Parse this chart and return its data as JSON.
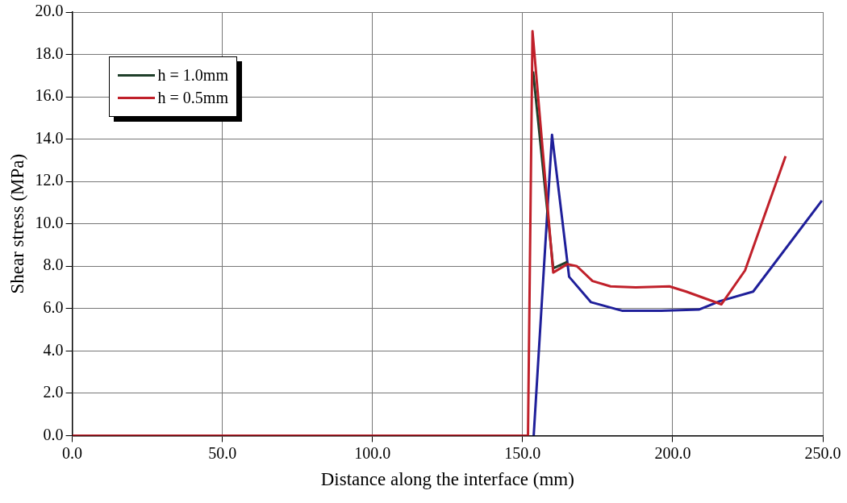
{
  "chart_data": {
    "type": "line",
    "xlabel": "Distance along the interface (mm)",
    "ylabel": "Shear stress (MPa)",
    "xlim": [
      0,
      250
    ],
    "ylim": [
      0,
      20
    ],
    "xticks": [
      {
        "value": 0,
        "label": "0.0"
      },
      {
        "value": 50,
        "label": "50.0"
      },
      {
        "value": 100,
        "label": "100.0"
      },
      {
        "value": 150,
        "label": "150.0"
      },
      {
        "value": 200,
        "label": "200.0"
      },
      {
        "value": 250,
        "label": "250.0"
      }
    ],
    "yticks": [
      {
        "value": 0,
        "label": "0.0"
      },
      {
        "value": 2,
        "label": "2.0"
      },
      {
        "value": 4,
        "label": "4.0"
      },
      {
        "value": 6,
        "label": "6.0"
      },
      {
        "value": 8,
        "label": "8.0"
      },
      {
        "value": 10,
        "label": "10.0"
      },
      {
        "value": 12,
        "label": "12.0"
      },
      {
        "value": 14,
        "label": "14.0"
      },
      {
        "value": 16,
        "label": "16.0"
      },
      {
        "value": 18,
        "label": "18.0"
      },
      {
        "value": 20,
        "label": "20.0"
      }
    ],
    "grid": true,
    "legend": "top left",
    "marker": "none",
    "line_style": "solid",
    "series": [
      {
        "color": "#1f1f9a",
        "x": [
          153.7,
          159.8,
          165.5,
          172.8,
          183.1,
          196.1,
          208.7,
          215.7,
          226.8,
          249.7
        ],
        "values": [
          0,
          14.2,
          7.5,
          6.3,
          5.9,
          5.9,
          5.95,
          6.35,
          6.8,
          11.1
        ]
      },
      {
        "name": "h = 1.0mm",
        "color": "#1f3f2a",
        "x": [
          153.5,
          160.2,
          164.9
        ],
        "values": [
          17.2,
          7.9,
          8.2
        ]
      },
      {
        "name": "h = 0.5mm",
        "color": "#c0202a",
        "x": [
          0,
          151.8,
          153.3,
          160.2,
          164.9,
          168.1,
          173.3,
          179.3,
          187.7,
          198.9,
          204.5,
          216.2,
          224.1,
          237.6
        ],
        "values": [
          0,
          0,
          19.1,
          7.7,
          8.1,
          8.0,
          7.3,
          7.05,
          7.0,
          7.05,
          6.8,
          6.2,
          7.8,
          13.2
        ]
      }
    ]
  }
}
